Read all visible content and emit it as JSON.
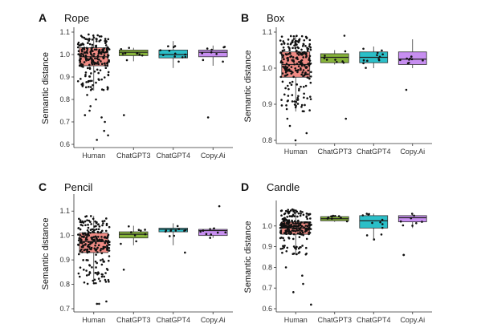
{
  "figure": {
    "ylabel": "Semantic distance",
    "groups": [
      "Human",
      "ChatGPT3",
      "ChatGPT4",
      "Copy.Ai"
    ],
    "colors": {
      "Human": "#f08b84",
      "ChatGPT3": "#86b33a",
      "ChatGPT4": "#2bbfc8",
      "Copy.Ai": "#c78ef0",
      "points": "#111111",
      "lines": "#333333"
    }
  },
  "chart_data": [
    {
      "type": "box",
      "panel": "A",
      "title": "Rope",
      "ylabel": "Semantic distance",
      "ylim": [
        0.6,
        1.1
      ],
      "yticks": [
        "0.6",
        "0.7",
        "0.8",
        "0.9",
        "1.0",
        "1.1"
      ],
      "categories": [
        "Human",
        "ChatGPT3",
        "ChatGPT4",
        "Copy.Ai"
      ],
      "boxes": [
        {
          "group": "Human",
          "q1": 0.95,
          "median": 0.99,
          "q3": 1.03,
          "whisker_low": 0.84,
          "whisker_high": 1.09,
          "n": 220,
          "outliers": [
            0.62,
            0.64,
            0.66,
            0.7,
            0.72,
            0.73,
            0.75,
            0.77,
            0.8,
            0.82
          ]
        },
        {
          "group": "ChatGPT3",
          "q1": 0.995,
          "median": 1.01,
          "q3": 1.02,
          "whisker_low": 0.97,
          "whisker_high": 1.03,
          "n": 10,
          "outliers": [
            0.73
          ]
        },
        {
          "group": "ChatGPT4",
          "q1": 0.985,
          "median": 1.0,
          "q3": 1.02,
          "whisker_low": 0.94,
          "whisker_high": 1.06,
          "n": 12,
          "outliers": []
        },
        {
          "group": "Copy.Ai",
          "q1": 0.99,
          "median": 1.01,
          "q3": 1.02,
          "whisker_low": 0.95,
          "whisker_high": 1.04,
          "n": 10,
          "outliers": [
            0.72
          ]
        }
      ]
    },
    {
      "type": "box",
      "panel": "B",
      "title": "Box",
      "ylabel": "Semantic distance",
      "ylim": [
        0.8,
        1.1
      ],
      "yticks": [
        "0.8",
        "0.9",
        "1.0",
        "1.1"
      ],
      "categories": [
        "Human",
        "ChatGPT3",
        "ChatGPT4",
        "Copy.Ai"
      ],
      "boxes": [
        {
          "group": "Human",
          "q1": 0.975,
          "median": 1.01,
          "q3": 1.045,
          "whisker_low": 0.88,
          "whisker_high": 1.09,
          "n": 240,
          "outliers": [
            0.8,
            0.82,
            0.84,
            0.86
          ]
        },
        {
          "group": "ChatGPT3",
          "q1": 1.015,
          "median": 1.03,
          "q3": 1.04,
          "whisker_low": 1.01,
          "whisker_high": 1.05,
          "n": 10,
          "outliers": [
            0.86,
            1.09
          ]
        },
        {
          "group": "ChatGPT4",
          "q1": 1.015,
          "median": 1.03,
          "q3": 1.045,
          "whisker_low": 1.0,
          "whisker_high": 1.06,
          "n": 12,
          "outliers": []
        },
        {
          "group": "Copy.Ai",
          "q1": 1.01,
          "median": 1.025,
          "q3": 1.045,
          "whisker_low": 1.0,
          "whisker_high": 1.08,
          "n": 10,
          "outliers": [
            0.94
          ]
        }
      ]
    },
    {
      "type": "box",
      "panel": "C",
      "title": "Pencil",
      "ylabel": "Semantic distance",
      "ylim": [
        0.7,
        1.15
      ],
      "yticks": [
        "0.7",
        "0.8",
        "0.9",
        "1.0",
        "1.1"
      ],
      "categories": [
        "Human",
        "ChatGPT3",
        "ChatGPT4",
        "Copy.Ai"
      ],
      "boxes": [
        {
          "group": "Human",
          "q1": 0.93,
          "median": 0.975,
          "q3": 1.01,
          "whisker_low": 0.8,
          "whisker_high": 1.08,
          "n": 230,
          "outliers": [
            0.72,
            0.72,
            0.73
          ]
        },
        {
          "group": "ChatGPT3",
          "q1": 0.99,
          "median": 1.005,
          "q3": 1.015,
          "whisker_low": 0.96,
          "whisker_high": 1.04,
          "n": 10,
          "outliers": [
            0.86
          ]
        },
        {
          "group": "ChatGPT4",
          "q1": 1.015,
          "median": 1.025,
          "q3": 1.03,
          "whisker_low": 0.96,
          "whisker_high": 1.05,
          "n": 12,
          "outliers": [
            0.93
          ]
        },
        {
          "group": "Copy.Ai",
          "q1": 1.0,
          "median": 1.02,
          "q3": 1.025,
          "whisker_low": 0.99,
          "whisker_high": 1.03,
          "n": 10,
          "outliers": [
            1.12
          ]
        }
      ]
    },
    {
      "type": "box",
      "panel": "D",
      "title": "Candle",
      "ylabel": "Semantic distance",
      "ylim": [
        0.6,
        1.1
      ],
      "yticks": [
        "0.6",
        "0.7",
        "0.8",
        "0.9",
        "1.0"
      ],
      "categories": [
        "Human",
        "ChatGPT3",
        "ChatGPT4",
        "Copy.Ai"
      ],
      "boxes": [
        {
          "group": "Human",
          "q1": 0.96,
          "median": 0.99,
          "q3": 1.02,
          "whisker_low": 0.86,
          "whisker_high": 1.08,
          "n": 240,
          "outliers": [
            0.62,
            0.68,
            0.72,
            0.76,
            0.8
          ]
        },
        {
          "group": "ChatGPT3",
          "q1": 1.025,
          "median": 1.035,
          "q3": 1.045,
          "whisker_low": 1.02,
          "whisker_high": 1.05,
          "n": 10,
          "outliers": []
        },
        {
          "group": "ChatGPT4",
          "q1": 0.99,
          "median": 1.025,
          "q3": 1.05,
          "whisker_low": 0.93,
          "whisker_high": 1.06,
          "n": 12,
          "outliers": []
        },
        {
          "group": "Copy.Ai",
          "q1": 1.02,
          "median": 1.04,
          "q3": 1.05,
          "whisker_low": 0.99,
          "whisker_high": 1.06,
          "n": 10,
          "outliers": [
            0.86,
            0.86
          ]
        }
      ]
    }
  ]
}
